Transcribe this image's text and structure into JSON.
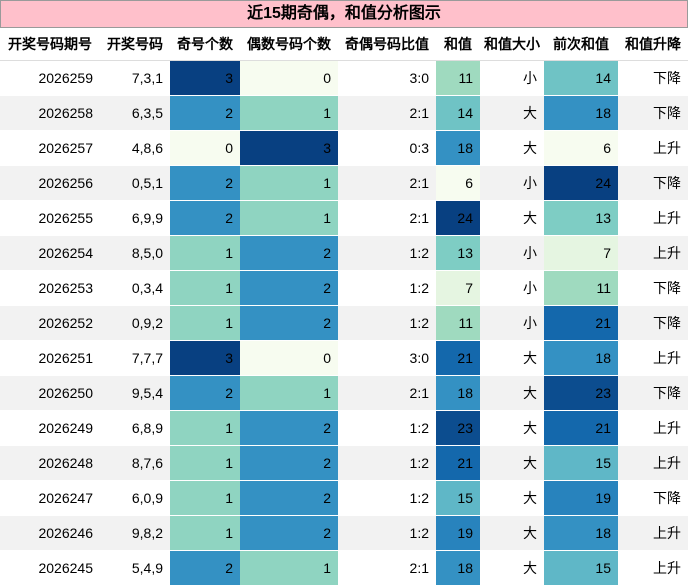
{
  "title": "近15期奇偶，和值分析图示",
  "chart_data": {
    "type": "table",
    "columns": [
      "开奖号码期号",
      "开奖号码",
      "奇号个数",
      "偶数号码个数",
      "奇偶号码比值",
      "和值",
      "和值大小",
      "前次和值",
      "和值升降"
    ],
    "rows": [
      [
        "2026259",
        "7,3,1",
        3,
        0,
        "3:0",
        11,
        "小",
        14,
        "下降"
      ],
      [
        "2026258",
        "6,3,5",
        2,
        1,
        "2:1",
        14,
        "大",
        18,
        "下降"
      ],
      [
        "2026257",
        "4,8,6",
        0,
        3,
        "0:3",
        18,
        "大",
        6,
        "上升"
      ],
      [
        "2026256",
        "0,5,1",
        2,
        1,
        "2:1",
        6,
        "小",
        24,
        "下降"
      ],
      [
        "2026255",
        "6,9,9",
        2,
        1,
        "2:1",
        24,
        "大",
        13,
        "上升"
      ],
      [
        "2026254",
        "8,5,0",
        1,
        2,
        "1:2",
        13,
        "小",
        7,
        "上升"
      ],
      [
        "2026253",
        "0,3,4",
        1,
        2,
        "1:2",
        7,
        "小",
        11,
        "下降"
      ],
      [
        "2026252",
        "0,9,2",
        1,
        2,
        "1:2",
        11,
        "小",
        21,
        "下降"
      ],
      [
        "2026251",
        "7,7,7",
        3,
        0,
        "3:0",
        21,
        "大",
        18,
        "上升"
      ],
      [
        "2026250",
        "9,5,4",
        2,
        1,
        "2:1",
        18,
        "大",
        23,
        "下降"
      ],
      [
        "2026249",
        "6,8,9",
        1,
        2,
        "1:2",
        23,
        "大",
        21,
        "上升"
      ],
      [
        "2026248",
        "8,7,6",
        1,
        2,
        "1:2",
        21,
        "大",
        15,
        "上升"
      ],
      [
        "2026247",
        "6,0,9",
        1,
        2,
        "1:2",
        15,
        "大",
        19,
        "下降"
      ],
      [
        "2026246",
        "9,8,2",
        1,
        2,
        "1:2",
        19,
        "大",
        18,
        "上升"
      ],
      [
        "2026245",
        "5,4,9",
        2,
        1,
        "2:1",
        18,
        "大",
        15,
        "上升"
      ]
    ],
    "heatmap_columns": [
      2,
      3,
      5,
      7
    ],
    "color_scale": [
      "#f7fcf0",
      "#b6e3bb",
      "#7bccc4",
      "#43a2ca",
      "#1770b4",
      "#084081"
    ],
    "colors": {
      "title_bg": "#ffc0cb",
      "stripe": "#f2f2f2"
    }
  }
}
